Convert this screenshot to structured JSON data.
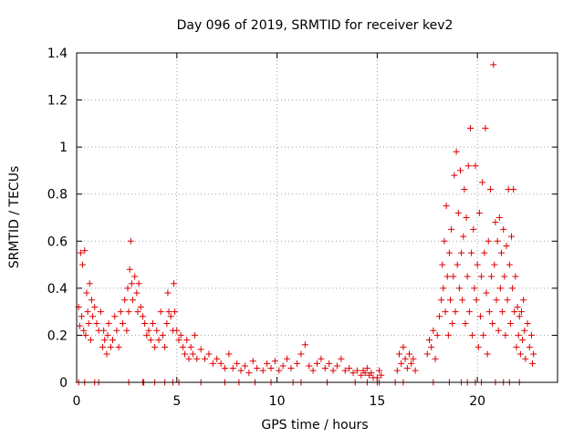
{
  "chart_data": {
    "type": "scatter",
    "title": "Day 096 of 2019, SRMTID for receiver kev2",
    "xlabel": "GPS time / hours",
    "ylabel": "SRMTID / TECUs",
    "xlim": [
      0,
      24
    ],
    "ylim": [
      0,
      1.4
    ],
    "xticks": [
      0,
      5,
      10,
      15,
      20
    ],
    "xtick_labels": [
      "0",
      "5",
      "10",
      "15",
      "20"
    ],
    "yticks": [
      0,
      0.2,
      0.4,
      0.6,
      0.8,
      1.0,
      1.2,
      1.4
    ],
    "ytick_labels": [
      "0",
      "0.2",
      "0.4",
      "0.6",
      "0.8",
      "1",
      "1.2",
      "1.4"
    ],
    "grid": true,
    "marker": "plus",
    "color": "#dd0000",
    "series": [
      {
        "name": "kev2",
        "points": [
          [
            0.1,
            0.32
          ],
          [
            0.15,
            0.24
          ],
          [
            0.2,
            0.55
          ],
          [
            0.25,
            0.28
          ],
          [
            0.3,
            0.5
          ],
          [
            0.35,
            0.22
          ],
          [
            0.4,
            0.56
          ],
          [
            0.45,
            0.2
          ],
          [
            0.5,
            0.38
          ],
          [
            0.55,
            0.3
          ],
          [
            0.6,
            0.25
          ],
          [
            0.65,
            0.42
          ],
          [
            0.7,
            0.18
          ],
          [
            0.75,
            0.35
          ],
          [
            0.8,
            0.28
          ],
          [
            0.9,
            0.32
          ],
          [
            1.0,
            0.25
          ],
          [
            1.1,
            0.22
          ],
          [
            1.2,
            0.3
          ],
          [
            1.3,
            0.15
          ],
          [
            1.35,
            0.22
          ],
          [
            1.4,
            0.18
          ],
          [
            1.5,
            0.12
          ],
          [
            1.55,
            0.2
          ],
          [
            1.6,
            0.25
          ],
          [
            1.7,
            0.15
          ],
          [
            1.8,
            0.18
          ],
          [
            1.9,
            0.28
          ],
          [
            2.0,
            0.22
          ],
          [
            2.1,
            0.15
          ],
          [
            2.2,
            0.3
          ],
          [
            2.3,
            0.25
          ],
          [
            2.4,
            0.35
          ],
          [
            2.5,
            0.22
          ],
          [
            2.55,
            0.4
          ],
          [
            2.6,
            0.3
          ],
          [
            2.65,
            0.48
          ],
          [
            2.7,
            0.6
          ],
          [
            2.75,
            0.42
          ],
          [
            2.8,
            0.35
          ],
          [
            2.9,
            0.45
          ],
          [
            3.0,
            0.38
          ],
          [
            3.05,
            0.3
          ],
          [
            3.1,
            0.42
          ],
          [
            3.2,
            0.32
          ],
          [
            3.3,
            0.28
          ],
          [
            3.4,
            0.25
          ],
          [
            3.5,
            0.2
          ],
          [
            3.6,
            0.22
          ],
          [
            3.7,
            0.18
          ],
          [
            3.8,
            0.25
          ],
          [
            3.9,
            0.15
          ],
          [
            4.0,
            0.22
          ],
          [
            4.1,
            0.18
          ],
          [
            4.2,
            0.3
          ],
          [
            4.3,
            0.2
          ],
          [
            4.4,
            0.15
          ],
          [
            4.5,
            0.25
          ],
          [
            4.55,
            0.38
          ],
          [
            4.6,
            0.3
          ],
          [
            4.7,
            0.28
          ],
          [
            4.8,
            0.22
          ],
          [
            4.85,
            0.42
          ],
          [
            4.9,
            0.3
          ],
          [
            5.0,
            0.22
          ],
          [
            5.1,
            0.18
          ],
          [
            5.2,
            0.2
          ],
          [
            5.3,
            0.15
          ],
          [
            5.4,
            0.12
          ],
          [
            5.5,
            0.18
          ],
          [
            5.6,
            0.1
          ],
          [
            5.7,
            0.15
          ],
          [
            5.8,
            0.12
          ],
          [
            5.9,
            0.2
          ],
          [
            6.0,
            0.1
          ],
          [
            6.2,
            0.14
          ],
          [
            6.4,
            0.1
          ],
          [
            6.6,
            0.12
          ],
          [
            6.8,
            0.08
          ],
          [
            7.0,
            0.1
          ],
          [
            7.2,
            0.08
          ],
          [
            7.4,
            0.06
          ],
          [
            7.6,
            0.12
          ],
          [
            7.8,
            0.06
          ],
          [
            8.0,
            0.08
          ],
          [
            8.2,
            0.05
          ],
          [
            8.4,
            0.07
          ],
          [
            8.6,
            0.04
          ],
          [
            8.8,
            0.09
          ],
          [
            9.0,
            0.06
          ],
          [
            9.3,
            0.05
          ],
          [
            9.5,
            0.08
          ],
          [
            9.7,
            0.06
          ],
          [
            9.9,
            0.09
          ],
          [
            10.1,
            0.05
          ],
          [
            10.3,
            0.07
          ],
          [
            10.5,
            0.1
          ],
          [
            10.7,
            0.06
          ],
          [
            11.0,
            0.08
          ],
          [
            11.2,
            0.12
          ],
          [
            11.4,
            0.16
          ],
          [
            11.6,
            0.07
          ],
          [
            11.8,
            0.05
          ],
          [
            12.0,
            0.08
          ],
          [
            12.2,
            0.1
          ],
          [
            12.4,
            0.06
          ],
          [
            12.6,
            0.08
          ],
          [
            12.8,
            0.05
          ],
          [
            13.0,
            0.07
          ],
          [
            13.2,
            0.1
          ],
          [
            13.4,
            0.05
          ],
          [
            13.6,
            0.06
          ],
          [
            13.8,
            0.04
          ],
          [
            14.0,
            0.05
          ],
          [
            14.2,
            0.03
          ],
          [
            14.3,
            0.05
          ],
          [
            14.4,
            0.04
          ],
          [
            14.5,
            0.06
          ],
          [
            14.6,
            0.03
          ],
          [
            14.7,
            0.04
          ],
          [
            14.8,
            0.02
          ],
          [
            15.0,
            0.02
          ],
          [
            15.1,
            0.05
          ],
          [
            15.2,
            0.03
          ],
          [
            16.0,
            0.05
          ],
          [
            16.1,
            0.12
          ],
          [
            16.2,
            0.08
          ],
          [
            16.3,
            0.15
          ],
          [
            16.4,
            0.1
          ],
          [
            16.5,
            0.06
          ],
          [
            16.6,
            0.12
          ],
          [
            16.7,
            0.08
          ],
          [
            16.8,
            0.1
          ],
          [
            16.9,
            0.05
          ],
          [
            17.5,
            0.12
          ],
          [
            17.6,
            0.18
          ],
          [
            17.7,
            0.15
          ],
          [
            17.8,
            0.22
          ],
          [
            17.9,
            0.1
          ],
          [
            18.0,
            0.2
          ],
          [
            18.1,
            0.28
          ],
          [
            18.2,
            0.35
          ],
          [
            18.25,
            0.5
          ],
          [
            18.3,
            0.4
          ],
          [
            18.35,
            0.6
          ],
          [
            18.4,
            0.3
          ],
          [
            18.45,
            0.75
          ],
          [
            18.5,
            0.45
          ],
          [
            18.55,
            0.2
          ],
          [
            18.6,
            0.55
          ],
          [
            18.65,
            0.35
          ],
          [
            18.7,
            0.65
          ],
          [
            18.75,
            0.25
          ],
          [
            18.8,
            0.45
          ],
          [
            18.85,
            0.88
          ],
          [
            18.9,
            0.3
          ],
          [
            18.95,
            0.98
          ],
          [
            19.0,
            0.5
          ],
          [
            19.05,
            0.72
          ],
          [
            19.1,
            0.4
          ],
          [
            19.15,
            0.9
          ],
          [
            19.2,
            0.55
          ],
          [
            19.25,
            0.35
          ],
          [
            19.3,
            0.62
          ],
          [
            19.35,
            0.82
          ],
          [
            19.4,
            0.25
          ],
          [
            19.45,
            0.7
          ],
          [
            19.5,
            0.45
          ],
          [
            19.55,
            0.92
          ],
          [
            19.6,
            0.3
          ],
          [
            19.65,
            1.08
          ],
          [
            19.7,
            0.55
          ],
          [
            19.75,
            0.2
          ],
          [
            19.8,
            0.65
          ],
          [
            19.85,
            0.4
          ],
          [
            19.9,
            0.92
          ],
          [
            19.95,
            0.35
          ],
          [
            20.0,
            0.5
          ],
          [
            20.05,
            0.15
          ],
          [
            20.1,
            0.72
          ],
          [
            20.15,
            0.28
          ],
          [
            20.2,
            0.45
          ],
          [
            20.25,
            0.85
          ],
          [
            20.3,
            0.2
          ],
          [
            20.35,
            0.55
          ],
          [
            20.4,
            1.08
          ],
          [
            20.45,
            0.38
          ],
          [
            20.5,
            0.12
          ],
          [
            20.55,
            0.6
          ],
          [
            20.6,
            0.3
          ],
          [
            20.65,
            0.82
          ],
          [
            20.7,
            0.45
          ],
          [
            20.75,
            0.25
          ],
          [
            20.8,
            1.35
          ],
          [
            20.85,
            0.5
          ],
          [
            20.9,
            0.68
          ],
          [
            20.95,
            0.35
          ],
          [
            21.0,
            0.6
          ],
          [
            21.05,
            0.22
          ],
          [
            21.1,
            0.7
          ],
          [
            21.15,
            0.4
          ],
          [
            21.2,
            0.55
          ],
          [
            21.25,
            0.3
          ],
          [
            21.3,
            0.65
          ],
          [
            21.35,
            0.45
          ],
          [
            21.4,
            0.2
          ],
          [
            21.45,
            0.58
          ],
          [
            21.5,
            0.35
          ],
          [
            21.55,
            0.82
          ],
          [
            21.6,
            0.5
          ],
          [
            21.65,
            0.25
          ],
          [
            21.7,
            0.62
          ],
          [
            21.75,
            0.4
          ],
          [
            21.8,
            0.82
          ],
          [
            21.85,
            0.3
          ],
          [
            21.9,
            0.45
          ],
          [
            21.95,
            0.15
          ],
          [
            22.0,
            0.32
          ],
          [
            22.05,
            0.2
          ],
          [
            22.1,
            0.28
          ],
          [
            22.15,
            0.12
          ],
          [
            22.2,
            0.3
          ],
          [
            22.25,
            0.18
          ],
          [
            22.3,
            0.35
          ],
          [
            22.35,
            0.22
          ],
          [
            22.4,
            0.1
          ],
          [
            22.5,
            0.25
          ],
          [
            22.6,
            0.15
          ],
          [
            22.7,
            0.2
          ],
          [
            22.75,
            0.08
          ],
          [
            22.8,
            0.12
          ]
        ],
        "baseline_points": [
          [
            0.1,
            0
          ],
          [
            0.4,
            0
          ],
          [
            0.9,
            0
          ],
          [
            1.1,
            0
          ],
          [
            2.6,
            0
          ],
          [
            3.3,
            0
          ],
          [
            3.35,
            0
          ],
          [
            3.9,
            0
          ],
          [
            4.4,
            0
          ],
          [
            4.8,
            0
          ],
          [
            5.1,
            0
          ],
          [
            6.2,
            0
          ],
          [
            7.4,
            0
          ],
          [
            8.1,
            0
          ],
          [
            8.9,
            0
          ],
          [
            9.7,
            0
          ],
          [
            10.8,
            0
          ],
          [
            11.2,
            0
          ],
          [
            12.5,
            0
          ],
          [
            13.9,
            0
          ],
          [
            14.5,
            0
          ],
          [
            15.0,
            0
          ],
          [
            15.1,
            0
          ],
          [
            15.9,
            0
          ],
          [
            16.3,
            0
          ],
          [
            17.8,
            0
          ],
          [
            18.6,
            0
          ],
          [
            19.2,
            0
          ],
          [
            19.5,
            0
          ],
          [
            19.9,
            0
          ],
          [
            20.2,
            0
          ],
          [
            20.9,
            0
          ],
          [
            21.3,
            0
          ],
          [
            21.6,
            0
          ],
          [
            22.1,
            0
          ]
        ]
      }
    ]
  }
}
